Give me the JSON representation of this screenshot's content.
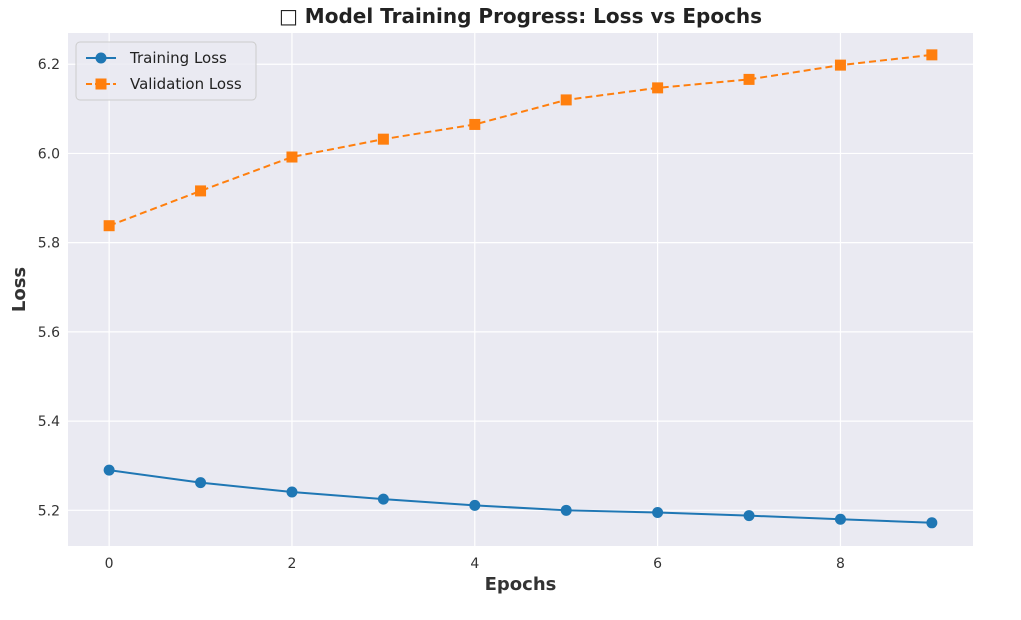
{
  "chart_data": {
    "type": "line",
    "title": "□ Model Training Progress: Loss vs Epochs",
    "xlabel": "Epochs",
    "ylabel": "Loss",
    "xlim": [
      -0.45,
      9.45
    ],
    "ylim": [
      5.12,
      6.27
    ],
    "xticks": [
      0,
      2,
      4,
      6,
      8
    ],
    "yticks": [
      5.2,
      5.4,
      5.6,
      5.8,
      6.0,
      6.2
    ],
    "xtick_labels": [
      "0",
      "2",
      "4",
      "6",
      "8"
    ],
    "ytick_labels": [
      "5.2",
      "5.4",
      "5.6",
      "5.8",
      "6.0",
      "6.2"
    ],
    "grid": true,
    "legend_position": "top-left",
    "x": [
      0,
      1,
      2,
      3,
      4,
      5,
      6,
      7,
      8,
      9
    ],
    "series": [
      {
        "name": "Training Loss",
        "values": [
          5.29,
          5.262,
          5.241,
          5.225,
          5.211,
          5.2,
          5.195,
          5.188,
          5.18,
          5.172
        ],
        "color": "#1f77b4",
        "line_style": "solid",
        "marker": "circle"
      },
      {
        "name": "Validation Loss",
        "values": [
          5.838,
          5.916,
          5.992,
          6.032,
          6.065,
          6.12,
          6.147,
          6.166,
          6.198,
          6.221
        ],
        "color": "#ff7f0e",
        "line_style": "dashed",
        "marker": "square"
      }
    ],
    "colors": {
      "plot_background": "#eaeaf2",
      "grid": "#ffffff"
    }
  }
}
